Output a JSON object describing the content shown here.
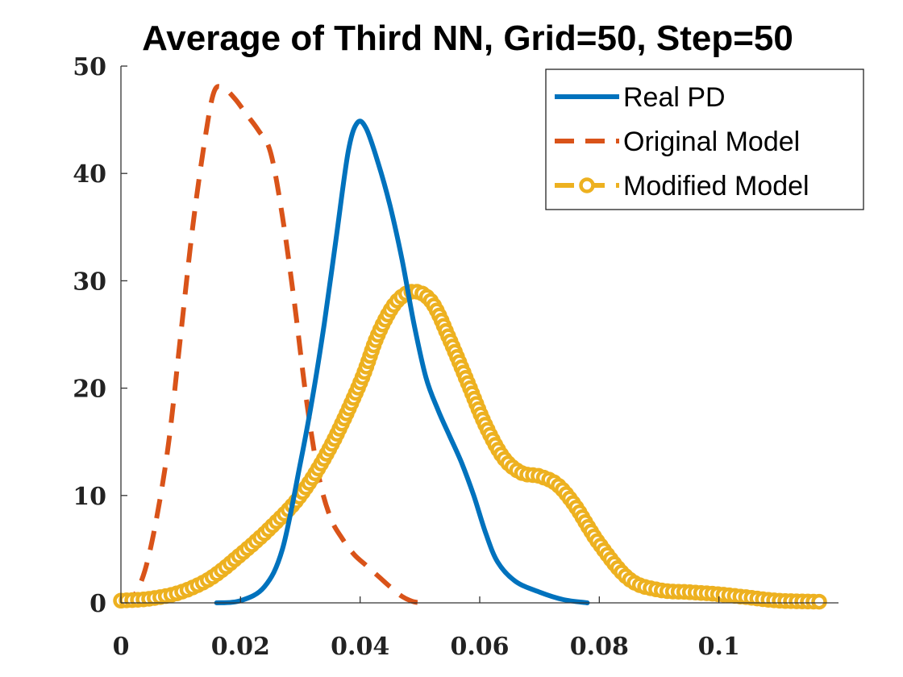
{
  "chart_data": {
    "type": "line",
    "title": "Average of Third NN, Grid=50, Step=50",
    "xlabel": "",
    "ylabel": "",
    "xlim": [
      0,
      0.12
    ],
    "ylim": [
      0,
      50
    ],
    "x_ticks": [
      0,
      0.02,
      0.04,
      0.06,
      0.08,
      0.1
    ],
    "x_tick_labels": [
      "0",
      "0.02",
      "0.04",
      "0.06",
      "0.08",
      "0.1"
    ],
    "y_ticks": [
      0,
      10,
      20,
      30,
      40,
      50
    ],
    "y_tick_labels": [
      "0",
      "10",
      "20",
      "30",
      "40",
      "50"
    ],
    "grid": false,
    "legend_position": "top-right",
    "series": [
      {
        "name": "Real PD",
        "style": "solid",
        "color": "#0072BD",
        "points": [
          [
            0.016,
            0
          ],
          [
            0.02,
            0.2
          ],
          [
            0.024,
            1.5
          ],
          [
            0.027,
            5
          ],
          [
            0.03,
            13
          ],
          [
            0.032,
            19
          ],
          [
            0.034,
            26
          ],
          [
            0.036,
            34
          ],
          [
            0.038,
            42
          ],
          [
            0.0395,
            44.7
          ],
          [
            0.041,
            44.2
          ],
          [
            0.043,
            41
          ],
          [
            0.045,
            37
          ],
          [
            0.047,
            32
          ],
          [
            0.049,
            26
          ],
          [
            0.051,
            21
          ],
          [
            0.053,
            18
          ],
          [
            0.055,
            15.5
          ],
          [
            0.057,
            13
          ],
          [
            0.059,
            10
          ],
          [
            0.061,
            6.5
          ],
          [
            0.063,
            3.8
          ],
          [
            0.066,
            2
          ],
          [
            0.07,
            1
          ],
          [
            0.074,
            0.3
          ],
          [
            0.078,
            0
          ]
        ]
      },
      {
        "name": "Original Model",
        "style": "dashed",
        "color": "#D95319",
        "points": [
          [
            0,
            0
          ],
          [
            0.002,
            0.5
          ],
          [
            0.004,
            3
          ],
          [
            0.006,
            8
          ],
          [
            0.008,
            15
          ],
          [
            0.01,
            25
          ],
          [
            0.012,
            35
          ],
          [
            0.014,
            43
          ],
          [
            0.0155,
            47.5
          ],
          [
            0.017,
            48
          ],
          [
            0.019,
            47
          ],
          [
            0.021,
            45.5
          ],
          [
            0.023,
            44
          ],
          [
            0.025,
            42
          ],
          [
            0.027,
            36
          ],
          [
            0.029,
            28
          ],
          [
            0.031,
            19
          ],
          [
            0.033,
            12
          ],
          [
            0.035,
            8
          ],
          [
            0.037,
            6
          ],
          [
            0.039,
            4.5
          ],
          [
            0.041,
            3.5
          ],
          [
            0.043,
            2.5
          ],
          [
            0.045,
            1.5
          ],
          [
            0.047,
            0.6
          ],
          [
            0.049,
            0.1
          ],
          [
            0.051,
            0
          ]
        ]
      },
      {
        "name": "Modified Model",
        "style": "dashed-circle",
        "color": "#EDB120",
        "points": [
          [
            0.0,
            0.2
          ],
          [
            0.005,
            0.4
          ],
          [
            0.01,
            1.0
          ],
          [
            0.015,
            2.3
          ],
          [
            0.02,
            4.5
          ],
          [
            0.025,
            7.0
          ],
          [
            0.03,
            10.0
          ],
          [
            0.035,
            14.5
          ],
          [
            0.04,
            20.5
          ],
          [
            0.043,
            25
          ],
          [
            0.046,
            28.0
          ],
          [
            0.049,
            29.0
          ],
          [
            0.052,
            28.0
          ],
          [
            0.055,
            24.5
          ],
          [
            0.058,
            20.5
          ],
          [
            0.061,
            16.5
          ],
          [
            0.064,
            13.5
          ],
          [
            0.067,
            12.1
          ],
          [
            0.07,
            11.8
          ],
          [
            0.073,
            11.0
          ],
          [
            0.076,
            9.0
          ],
          [
            0.08,
            5.5
          ],
          [
            0.085,
            2.2
          ],
          [
            0.09,
            1.2
          ],
          [
            0.095,
            1.0
          ],
          [
            0.1,
            0.8
          ],
          [
            0.105,
            0.5
          ],
          [
            0.11,
            0.2
          ],
          [
            0.117,
            0.1
          ]
        ]
      }
    ]
  }
}
